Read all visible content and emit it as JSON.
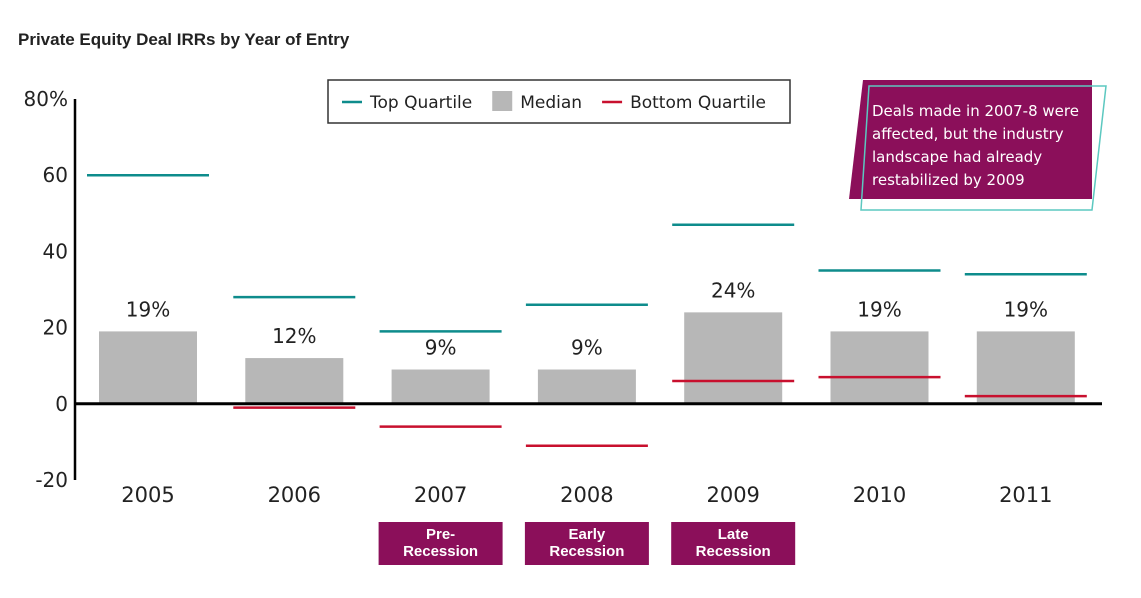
{
  "chart_data": {
    "type": "bar",
    "title": "Private Equity Deal IRRs by Year of Entry",
    "categories": [
      "2005",
      "2006",
      "2007",
      "2008",
      "2009",
      "2010",
      "2011"
    ],
    "series": [
      {
        "name": "Median",
        "values": [
          19,
          12,
          9,
          9,
          24,
          19,
          19
        ],
        "color": "#b7b7b7"
      },
      {
        "name": "Top Quartile",
        "values": [
          60,
          28,
          19,
          26,
          47,
          35,
          34
        ],
        "color": "#0e8c8c"
      },
      {
        "name": "Bottom Quartile",
        "values": [
          0,
          -1,
          -6,
          -11,
          6,
          7,
          2
        ],
        "color": "#c8102e"
      }
    ],
    "data_labels": [
      "19%",
      "12%",
      "9%",
      "9%",
      "24%",
      "19%",
      "19%"
    ],
    "ylim": [
      -20,
      80
    ],
    "yticks": [
      {
        "value": 80,
        "label": "80%"
      },
      {
        "value": 60,
        "label": "60"
      },
      {
        "value": 40,
        "label": "40"
      },
      {
        "value": 20,
        "label": "20"
      },
      {
        "value": 0,
        "label": "0"
      },
      {
        "value": -20,
        "label": "-20"
      }
    ],
    "legend": {
      "position": "top-center",
      "entries": [
        "Top Quartile",
        "Median",
        "Bottom Quartile"
      ]
    },
    "annotation": {
      "lines": [
        "Deals made in 2007-8 were",
        "affected, but the industry",
        "landscape had already",
        "restabilized by 2009"
      ]
    },
    "period_tags": [
      {
        "category": "2007",
        "lines": [
          "Pre-",
          "Recession"
        ]
      },
      {
        "category": "2008",
        "lines": [
          "Early",
          "Recession"
        ]
      },
      {
        "category": "2009",
        "lines": [
          "Late",
          "Recession"
        ]
      }
    ],
    "colors": {
      "accent": "#8b0f5a",
      "annotation_outline": "#5cc8c0",
      "axis": "#000000"
    }
  }
}
